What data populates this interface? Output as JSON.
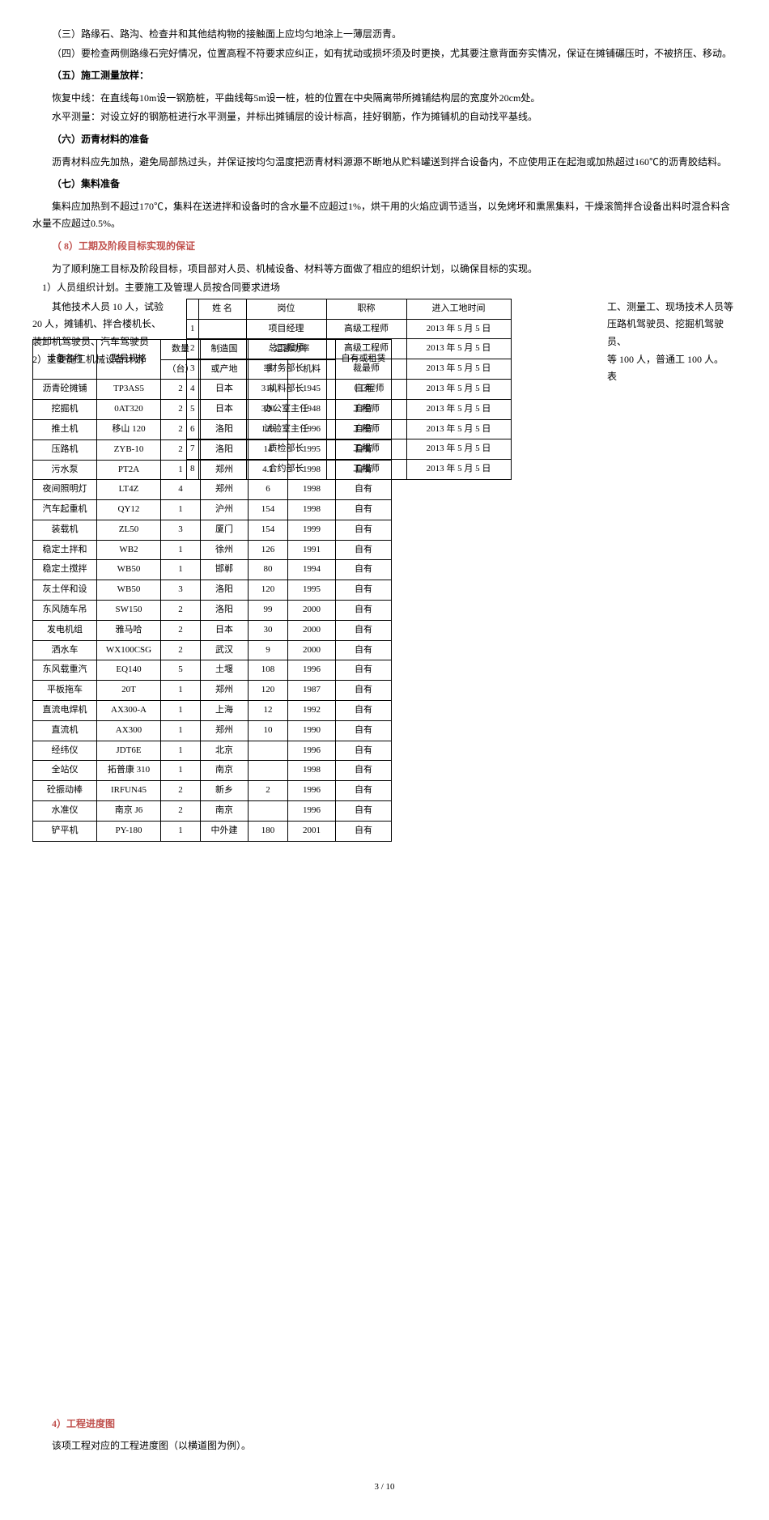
{
  "paragraphs": {
    "p3": "（三）路缘石、路沟、检查井和其他结构物的接触面上应均匀地涂上一薄层沥青。",
    "p4": "（四）要检查两侧路缘石完好情况，位置高程不符要求应纠正，如有扰动或损坏须及时更换，尤其要注意背面夯实情况，保证在摊铺碾压时，不被挤压、移动。",
    "s5_title": "（五）施工测量放样：",
    "s5_1": "恢复中线：在直线每10m设一钢筋桩，平曲线每5m设一桩，桩的位置在中央隔离带所摊铺结构层的宽度外20cm处。",
    "s5_2": "水平测量：对设立好的钢筋桩进行水平测量，并标出摊铺层的设计标高，挂好钢筋，作为摊铺机的自动找平基线。",
    "s6_title": "（六）沥青材料的准备",
    "s6_1": "沥青材料应先加热，避免局部热过头，并保证按均匀温度把沥青材料源源不断地从贮料罐送到拌合设备内，不应使用正在起泡或加热超过160℃的沥青胶结料。",
    "s7_title": "（七）集料准备",
    "s7_1": "集料应加热到不超过170℃，集料在送进拌和设备时的含水量不应超过1%，烘干用的火焰应调节适当，以免烤坏和熏黑集料，干燥滚筒拌合设备出料时混合料含水量不应超过0.5%。",
    "s8_title": "（ 8）工期及阶段目标实现的保证",
    "s8_1": "为了顺利施工目标及阶段目标，项目部对人员、机械设备、材料等方面做了相应的组织计划，以确保目标的实现。",
    "s8_2": "1）人员组织计划。主要施工及管理人员按合同要求进场",
    "left_text_1": "其他技术人员 10 人，试验",
    "left_text_2": "20 人，摊铺机、拌合楼机长、",
    "left_text_3": "装卸机驾驶员、汽车驾驶员",
    "left_text_4": "2）主要施工机械设备计划",
    "right_text_1": "工、测量工、现场技术人员等",
    "right_text_2": "压路机驾驶员、挖掘机驾驶员、",
    "right_text_3": "等 100 人，普通工 100 人。",
    "right_text_4": "表",
    "s4_title": "4）工程进度图",
    "s4_1": "该项工程对应的工程进度图（以横道图为例）。",
    "footer": "3 / 10"
  },
  "table1": {
    "headers": [
      "",
      "姓 名",
      "岗位",
      "职称",
      "进入工地时间"
    ],
    "rows": [
      [
        "1",
        "",
        "项目经理",
        "高级工程师",
        "2013 年 5 月 5 日"
      ],
      [
        "2",
        "",
        "总工程师",
        "高级工程师",
        "2013 年 5 月 5 日"
      ],
      [
        "3",
        "",
        "财务部长",
        "裁最师",
        "2013 年 5 月 5 日"
      ],
      [
        "4",
        "",
        "机料部长",
        "（工程师",
        "2013 年 5 月 5 日"
      ],
      [
        "5",
        "",
        "办公室主任",
        "工程师",
        "2013 年 5 月 5 日"
      ],
      [
        "6",
        "",
        "试验室主任",
        "工程师",
        "2013 年 5 月 5 日"
      ],
      [
        "7",
        "",
        "质检部长",
        "工程师",
        "2013 年 5 月 5 日"
      ],
      [
        "8",
        "",
        "合约部长",
        "工程师",
        "2013 年 5 月 5 日"
      ]
    ]
  },
  "table2": {
    "headers": [
      "设备名称",
      "型号规格",
      "数量（台）",
      "制造国或产地",
      "定额功率",
      "定额功率",
      "自有或租赁"
    ],
    "rows": [
      [
        "沥青砼摊铺",
        "TP3AS5",
        "2",
        "日本",
        "314",
        "1945",
        "自有"
      ],
      [
        "挖掘机",
        "0AT320",
        "2",
        "日本",
        "320",
        "1948",
        "自有"
      ],
      [
        "推土机",
        "移山 120",
        "2",
        "洛阳",
        "128",
        "1996",
        "自有"
      ],
      [
        "压路机",
        "ZYB-10",
        "2",
        "洛阳",
        "14",
        "1995",
        "自有"
      ],
      [
        "污水泵",
        "PT2A",
        "1",
        "郑州",
        "4.1",
        "1998",
        "自有"
      ],
      [
        "夜间照明灯",
        "LT4Z",
        "4",
        "郑州",
        "6",
        "1998",
        "自有"
      ],
      [
        "汽车起重机",
        "QY12",
        "1",
        "沪州",
        "154",
        "1998",
        "自有"
      ],
      [
        "装载机",
        "ZL50",
        "3",
        "厦门",
        "154",
        "1999",
        "自有"
      ],
      [
        "稳定土拌和",
        "WB2",
        "1",
        "徐州",
        "126",
        "1991",
        "自有"
      ],
      [
        "稳定土搅拌",
        "WB50",
        "1",
        "邯郸",
        "80",
        "1994",
        "自有"
      ],
      [
        "灰土伴和设",
        "WB50",
        "3",
        "洛阳",
        "120",
        "1995",
        "自有"
      ],
      [
        "东风随车吊",
        "SW150",
        "2",
        "洛阳",
        "99",
        "2000",
        "自有"
      ],
      [
        "发电机组",
        "雅马哈",
        "2",
        "日本",
        "30",
        "2000",
        "自有"
      ],
      [
        "洒水车",
        "WX100CSG",
        "2",
        "武汉",
        "9",
        "2000",
        "自有"
      ],
      [
        "东风载重汽",
        "EQ140",
        "5",
        "土堰",
        "108",
        "1996",
        "自有"
      ],
      [
        "平板拖车",
        "20T",
        "1",
        "郑州",
        "120",
        "1987",
        "自有"
      ],
      [
        "直流电焊机",
        "AX300-A",
        "1",
        "上海",
        "12",
        "1992",
        "自有"
      ],
      [
        "直流机",
        "AX300",
        "1",
        "郑州",
        "10",
        "1990",
        "自有"
      ],
      [
        "经纬仪",
        "JDT6E",
        "1",
        "北京",
        "",
        "1996",
        "自有"
      ],
      [
        "全站仪",
        "拓普康 310",
        "1",
        "南京",
        "",
        "1998",
        "自有"
      ],
      [
        "砼振动棒",
        "IRFUN45",
        "2",
        "新乡",
        "2",
        "1996",
        "自有"
      ],
      [
        "水准仪",
        "南京 J6",
        "2",
        "南京",
        "",
        "1996",
        "自有"
      ],
      [
        "铲平机",
        "PY-180",
        "1",
        "中外建",
        "180",
        "2001",
        "自有"
      ]
    ]
  }
}
